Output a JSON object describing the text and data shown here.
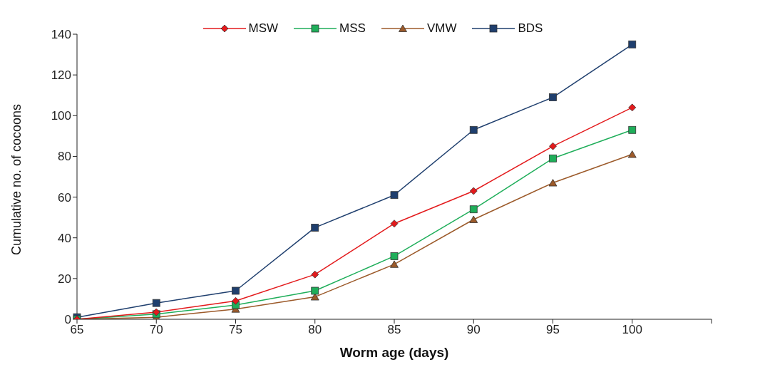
{
  "chart_data": {
    "type": "line",
    "xlabel": "Worm age (days)",
    "ylabel": "Cumulative no. of cocoons",
    "categories": [
      "65",
      "70",
      "75",
      "80",
      "85",
      "90",
      "95",
      "100",
      null
    ],
    "ylim": [
      0,
      140
    ],
    "yticks": [
      0,
      20,
      40,
      60,
      80,
      100,
      120,
      140
    ],
    "grid": false,
    "legend": "top",
    "line_style": "solid",
    "series": [
      {
        "name": "MSW",
        "color": "#e31a1c",
        "marker": "diamond",
        "values": [
          0,
          3.5,
          9,
          22,
          47,
          63,
          85,
          104,
          null
        ]
      },
      {
        "name": "MSS",
        "color": "#1fae5a",
        "marker": "square",
        "values": [
          0,
          2.5,
          7,
          14,
          31,
          54,
          79,
          93,
          null
        ]
      },
      {
        "name": "VMW",
        "color": "#9c5a2a",
        "marker": "triangle",
        "values": [
          0,
          1,
          5,
          11,
          27,
          49,
          67,
          81,
          null
        ]
      },
      {
        "name": "BDS",
        "color": "#1f3f6e",
        "marker": "square",
        "values": [
          1,
          8,
          14,
          45,
          61,
          93,
          109,
          135,
          null
        ]
      }
    ]
  }
}
